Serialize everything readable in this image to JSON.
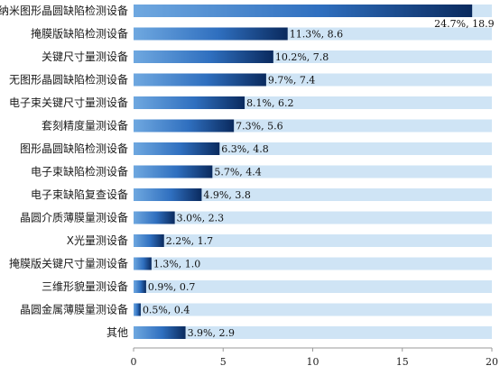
{
  "chart_data": {
    "type": "bar",
    "orientation": "horizontal",
    "title": "",
    "xlabel": "",
    "ylabel": "",
    "xlim": [
      0,
      20
    ],
    "x_ticks": [
      0,
      5,
      10,
      15,
      20
    ],
    "grid": false,
    "categories": [
      "纳米图形晶圆缺陷检测设备",
      "掩膜版缺陷检测设备",
      "关键尺寸量测设备",
      "无图形晶圆缺陷检测设备",
      "电子束关键尺寸量测设备",
      "套刻精度量测设备",
      "图形晶圆缺陷检测设备",
      "电子束缺陷检测设备",
      "电子束缺陷复查设备",
      "晶圆介质薄膜量测设备",
      "X光量测设备",
      "掩膜版关键尺寸量测设备",
      "三维形貌量测设备",
      "晶圆金属薄膜量测设备",
      "其他"
    ],
    "values": [
      18.9,
      8.6,
      7.8,
      7.4,
      6.2,
      5.6,
      4.8,
      4.4,
      3.8,
      2.3,
      1.7,
      1.0,
      0.7,
      0.4,
      2.9
    ],
    "shares": [
      "24.7%",
      "11.3%",
      "10.2%",
      "9.7%",
      "8.1%",
      "7.3%",
      "6.3%",
      "5.7%",
      "4.9%",
      "3.0%",
      "2.2%",
      "1.3%",
      "0.9%",
      "0.5%",
      "3.9%"
    ],
    "data_labels": [
      "24.7%, 18.9",
      "11.3%, 8.6",
      "10.2%, 7.8",
      "9.7%, 7.4",
      "8.1%, 6.2",
      "7.3%, 5.6",
      "6.3%, 4.8",
      "5.7%, 4.4",
      "4.9%, 3.8",
      "3.0%, 2.3",
      "2.2%, 1.7",
      "1.3%, 1.0",
      "0.9%, 0.7",
      "0.5%, 0.4",
      "3.9%, 2.9"
    ],
    "colors": {
      "bar_dark": "#0a2a5e",
      "bar_mid": "#2f6fbf",
      "bar_light": "#6fa8e0",
      "track": "#cfe4f5"
    }
  }
}
